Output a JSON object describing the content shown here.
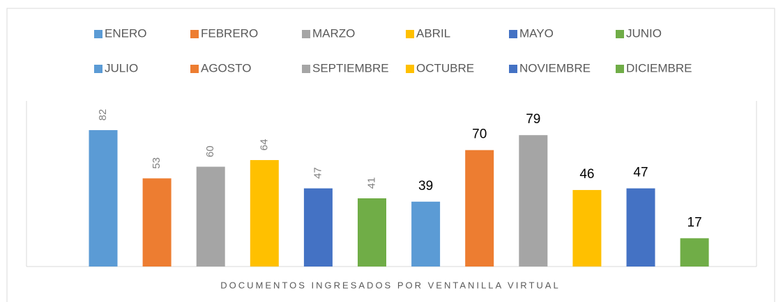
{
  "chart_data": {
    "type": "bar",
    "x_label": "DOCUMENTOS INGRESADOS POR VENTANILLA VIRTUAL",
    "categories": [
      "ENERO",
      "FEBRERO",
      "MARZO",
      "ABRIL",
      "MAYO",
      "JUNIO",
      "JULIO",
      "AGOSTO",
      "SEPTIEMBRE",
      "OCTUBRE",
      "NOVIEMBRE",
      "DICIEMBRE"
    ],
    "values": [
      82,
      53,
      60,
      64,
      47,
      41,
      39,
      70,
      79,
      46,
      47,
      17
    ],
    "colors": [
      "#5b9bd5",
      "#ed7d31",
      "#a5a5a5",
      "#ffc000",
      "#4472c4",
      "#70ad47",
      "#5b9bd5",
      "#ed7d31",
      "#a5a5a5",
      "#ffc000",
      "#4472c4",
      "#70ad47"
    ],
    "value_label_rotation": [
      -90,
      -90,
      -90,
      -90,
      -90,
      -90,
      0,
      0,
      0,
      0,
      0,
      0
    ],
    "ylim": [
      0,
      100
    ],
    "legend": "top"
  }
}
